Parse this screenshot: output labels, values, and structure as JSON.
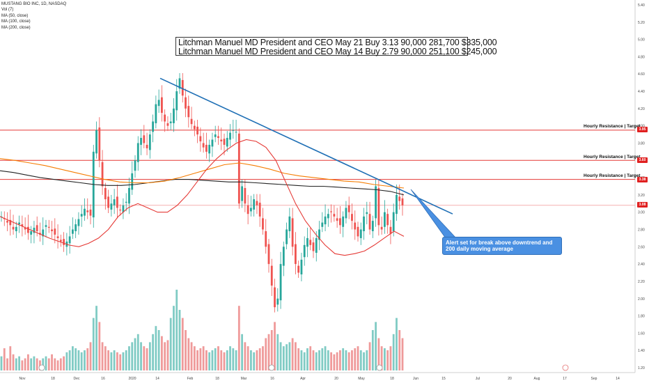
{
  "legend": {
    "symbol": "MUSTANG BIO INC, 1D, NASDAQ",
    "vol": "Vol (7)",
    "ma50": "MA (50, close)",
    "ma100": "MA (100, close)",
    "ma200": "MA (200, close)"
  },
  "insider_box": {
    "line1": "Litchman Manuel MD President and CEO May 21 Buy 3.13 90,000 281,700 $335,000",
    "line2": "Litchman Manuel MD President and CEO May 14 Buy 2.79 90,000 251,100 $245,000"
  },
  "callout": {
    "text": "Alert set for break above downtrend and 200 daily moving average"
  },
  "resistance": [
    {
      "label": "Hourly Resistance | Target",
      "price": 3.95,
      "tag": "3.95"
    },
    {
      "label": "Hourly Resistance | Target",
      "price": 3.6,
      "tag": "3.60"
    },
    {
      "label": "Hourly Resistance | Target",
      "price": 3.38,
      "tag": "3.38"
    }
  ],
  "current_price": {
    "price": 3.08,
    "tag": "3.08"
  },
  "colors": {
    "up": "#26a69a",
    "down": "#ef5350",
    "vol_up": "#80cbc4",
    "vol_down": "#ef9a9a",
    "ma50": "#e53935",
    "ma100": "#f57c00",
    "ma200": "#222222",
    "trend": "#1e6fb5",
    "resistance": "#e53935"
  },
  "chart_data": {
    "type": "candlestick",
    "y_axis": {
      "ylim": [
        1.15,
        5.5
      ],
      "ticks": [
        "5.40",
        "5.20",
        "5.00",
        "4.80",
        "4.60",
        "4.40",
        "4.20",
        "4.00",
        "3.80",
        "3.60",
        "3.40",
        "3.20",
        "3.00",
        "2.80",
        "2.60",
        "2.40",
        "2.20",
        "2.00",
        "1.80",
        "1.60",
        "1.40",
        "1.20"
      ]
    },
    "x_axis": {
      "ticks": [
        "Nov",
        "18",
        "Dec",
        "16",
        "2020",
        "14",
        "Feb",
        "18",
        "Mar",
        "16",
        "Apr",
        "20",
        "May",
        "18",
        "Jun",
        "15",
        "Jul",
        "20",
        "Aug",
        "17",
        "Sep",
        "14"
      ]
    },
    "candles_close": [
      2.95,
      2.92,
      2.88,
      2.85,
      2.8,
      2.83,
      2.88,
      2.84,
      2.8,
      2.76,
      2.78,
      2.82,
      2.78,
      2.74,
      2.8,
      2.85,
      2.82,
      2.78,
      2.74,
      2.7,
      2.66,
      2.62,
      2.66,
      2.72,
      2.8,
      2.86,
      2.92,
      2.98,
      3.04,
      3.0,
      2.96,
      3.7,
      3.95,
      3.6,
      3.3,
      3.15,
      3.05,
      3.1,
      3.15,
      3.05,
      3.02,
      3.08,
      3.12,
      3.28,
      3.45,
      3.6,
      3.8,
      3.86,
      3.8,
      3.74,
      3.9,
      4.05,
      4.25,
      4.3,
      4.15,
      4.05,
      4.0,
      4.05,
      4.2,
      4.4,
      4.55,
      4.35,
      4.2,
      4.1,
      4.02,
      3.96,
      3.9,
      3.82,
      3.75,
      3.7,
      3.78,
      3.84,
      3.9,
      3.86,
      3.82,
      3.78,
      3.86,
      3.92,
      3.95,
      3.93,
      3.1,
      3.3,
      3.1,
      2.98,
      3.05,
      3.15,
      3.08,
      2.95,
      2.8,
      2.6,
      2.4,
      2.15,
      1.9,
      2.0,
      2.4,
      2.6,
      2.8,
      2.95,
      2.6,
      2.4,
      2.3,
      2.45,
      2.62,
      2.7,
      2.62,
      2.55,
      2.7,
      2.8,
      2.88,
      2.95,
      2.98,
      3.0,
      2.95,
      2.9,
      2.85,
      2.95,
      3.05,
      3.0,
      2.9,
      2.8,
      2.72,
      2.8,
      2.95,
      3.0,
      2.8,
      2.9,
      3.3,
      2.85,
      2.8,
      3.0,
      2.85,
      2.75,
      3.0,
      3.2,
      3.13,
      3.08
    ],
    "ma50": [
      2.95,
      2.9,
      2.85,
      2.8,
      2.75,
      2.7,
      2.66,
      2.62,
      2.6,
      2.64,
      2.7,
      2.8,
      2.95,
      3.05,
      3.1,
      3.05,
      3.0,
      3.0,
      3.08,
      3.2,
      3.35,
      3.5,
      3.62,
      3.72,
      3.8,
      3.84,
      3.82,
      3.75,
      3.6,
      3.35,
      3.1,
      2.9,
      2.75,
      2.62,
      2.52,
      2.5,
      2.52,
      2.55,
      2.62,
      2.7,
      2.78,
      2.72
    ],
    "ma100": [
      3.62,
      3.6,
      3.57,
      3.54,
      3.5,
      3.46,
      3.42,
      3.38,
      3.35,
      3.34,
      3.34,
      3.36,
      3.4,
      3.45,
      3.5,
      3.55,
      3.57,
      3.54,
      3.5,
      3.45,
      3.42,
      3.4,
      3.38,
      3.36,
      3.35,
      3.32,
      3.3,
      3.28
    ],
    "ma200": [
      3.48,
      3.46,
      3.43,
      3.4,
      3.38,
      3.36,
      3.34,
      3.32,
      3.31,
      3.31,
      3.32,
      3.34,
      3.36,
      3.38,
      3.38,
      3.37,
      3.36,
      3.35,
      3.35,
      3.34,
      3.33,
      3.32,
      3.31,
      3.3,
      3.3,
      3.29,
      3.28,
      3.27,
      3.26,
      3.24,
      3.2
    ],
    "volume_relative": [
      0.35,
      0.55,
      0.3,
      0.6,
      0.4,
      0.3,
      0.35,
      0.25,
      0.3,
      0.4,
      0.3,
      0.35,
      0.3,
      0.25,
      0.3,
      0.35,
      0.3,
      0.4,
      0.3,
      0.25,
      0.3,
      0.35,
      0.45,
      0.5,
      0.6,
      0.55,
      0.5,
      0.45,
      0.5,
      0.55,
      0.7,
      1.3,
      1.6,
      1.2,
      0.7,
      0.6,
      0.5,
      0.45,
      0.5,
      0.45,
      0.4,
      0.45,
      0.5,
      0.6,
      0.7,
      0.8,
      0.9,
      0.7,
      0.6,
      0.55,
      0.7,
      0.9,
      1.1,
      1.0,
      0.85,
      0.7,
      0.75,
      1.3,
      1.6,
      2.0,
      1.5,
      1.3,
      1.0,
      0.8,
      0.7,
      0.6,
      0.5,
      0.55,
      0.6,
      0.5,
      0.45,
      0.5,
      0.55,
      0.6,
      0.5,
      0.45,
      0.5,
      0.6,
      0.55,
      0.5,
      1.6,
      0.9,
      0.7,
      0.6,
      0.5,
      0.45,
      0.5,
      0.55,
      0.6,
      0.8,
      0.9,
      1.0,
      1.2,
      0.9,
      0.7,
      0.6,
      0.65,
      0.7,
      0.8,
      0.7,
      0.55,
      0.5,
      0.45,
      0.55,
      0.6,
      0.5,
      0.45,
      0.5,
      0.55,
      0.6,
      0.5,
      0.45,
      0.4,
      0.45,
      0.5,
      0.55,
      0.5,
      0.45,
      0.5,
      0.55,
      0.6,
      0.5,
      0.45,
      0.5,
      0.7,
      1.0,
      1.2,
      0.8,
      0.6,
      0.55,
      0.5,
      0.6,
      0.9,
      1.3,
      1.0,
      0.8
    ],
    "trendline": [
      [
        4.55,
        0.0
      ],
      [
        2.98,
        1.0
      ]
    ]
  }
}
